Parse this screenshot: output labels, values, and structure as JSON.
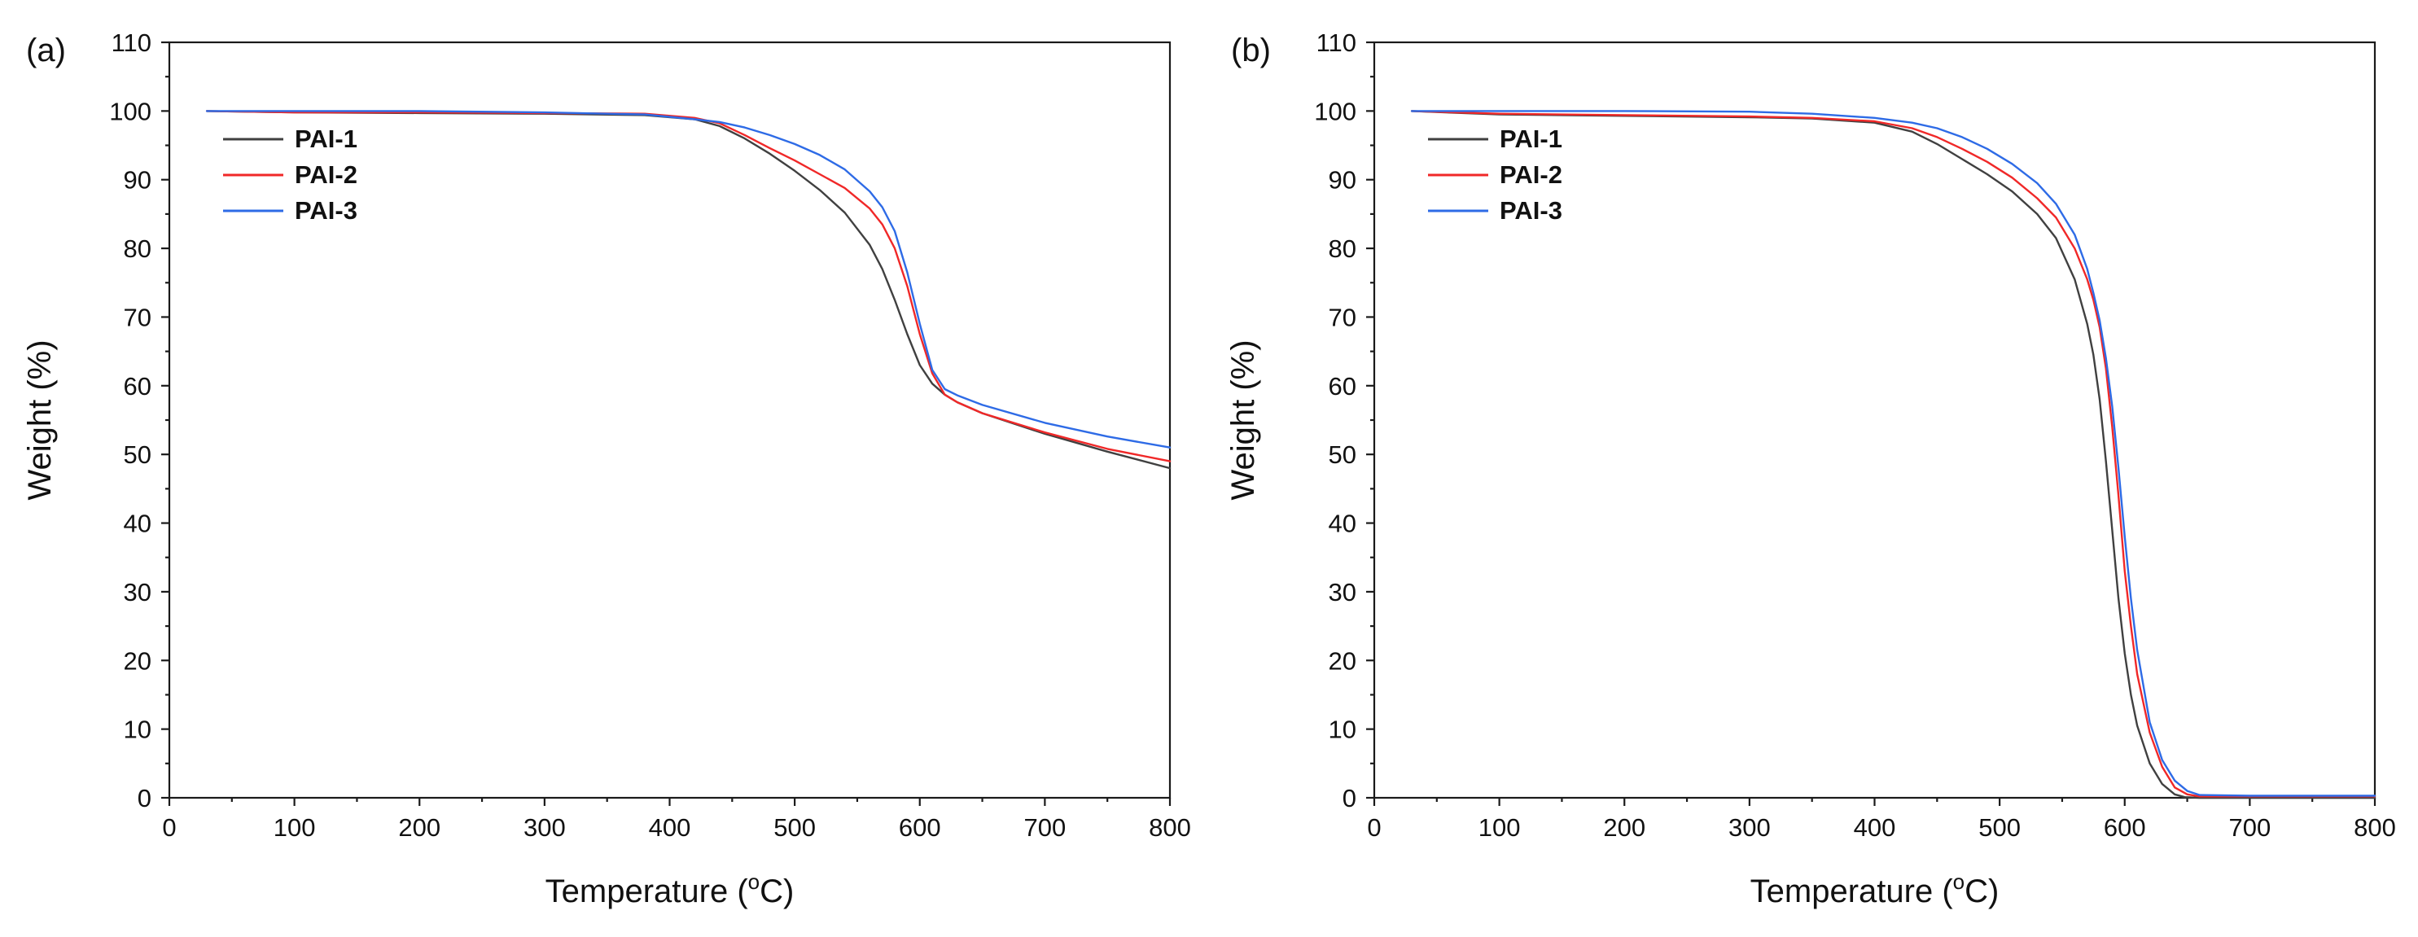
{
  "chart_data": [
    {
      "type": "line",
      "panel_label": "(a)",
      "xlabel": "Temperature (",
      "xlabel_sup": "o",
      "xlabel_suffix": "C)",
      "ylabel": "Weight (%)",
      "xlim": [
        0,
        800
      ],
      "ylim": [
        0,
        110
      ],
      "xticks": [
        0,
        100,
        200,
        300,
        400,
        500,
        600,
        700,
        800
      ],
      "yticks": [
        0,
        10,
        20,
        30,
        40,
        50,
        60,
        70,
        80,
        90,
        100,
        110
      ],
      "grid": false,
      "legend_position": "upper-left",
      "series": [
        {
          "name": "PAI-1",
          "color": "#404040",
          "x": [
            30,
            100,
            200,
            300,
            380,
            420,
            440,
            460,
            480,
            500,
            520,
            540,
            560,
            570,
            580,
            590,
            600,
            610,
            620,
            630,
            650,
            700,
            750,
            800
          ],
          "y": [
            100,
            99.8,
            99.7,
            99.6,
            99.4,
            98.8,
            97.8,
            96,
            93.8,
            91.3,
            88.5,
            85.2,
            80.5,
            77,
            72.5,
            67.5,
            63,
            60.3,
            58.7,
            57.6,
            56,
            53,
            50.4,
            48
          ]
        },
        {
          "name": "PAI-2",
          "color": "#f02828",
          "x": [
            30,
            100,
            200,
            300,
            380,
            420,
            440,
            460,
            480,
            500,
            520,
            540,
            560,
            570,
            580,
            590,
            600,
            610,
            620,
            630,
            650,
            700,
            750,
            800
          ],
          "y": [
            100,
            99.8,
            99.8,
            99.7,
            99.6,
            99,
            98.2,
            96.5,
            94.6,
            92.8,
            90.8,
            88.8,
            85.8,
            83.5,
            80,
            74.5,
            67.5,
            61.8,
            58.7,
            57.6,
            56,
            53.2,
            50.8,
            49
          ]
        },
        {
          "name": "PAI-3",
          "color": "#2e6be6",
          "x": [
            30,
            100,
            200,
            300,
            380,
            420,
            440,
            460,
            480,
            500,
            520,
            540,
            560,
            570,
            580,
            590,
            600,
            610,
            620,
            630,
            650,
            700,
            750,
            800
          ],
          "y": [
            100,
            100,
            100,
            99.8,
            99.5,
            98.8,
            98.4,
            97.6,
            96.5,
            95.2,
            93.6,
            91.5,
            88.3,
            86,
            82.5,
            76.5,
            69,
            62.3,
            59.5,
            58.6,
            57.2,
            54.6,
            52.6,
            51
          ]
        }
      ]
    },
    {
      "type": "line",
      "panel_label": "(b)",
      "xlabel": "Temperature (",
      "xlabel_sup": "o",
      "xlabel_suffix": "C)",
      "ylabel": "Weight (%)",
      "xlim": [
        0,
        800
      ],
      "ylim": [
        0,
        110
      ],
      "xticks": [
        0,
        100,
        200,
        300,
        400,
        500,
        600,
        700,
        800
      ],
      "yticks": [
        0,
        10,
        20,
        30,
        40,
        50,
        60,
        70,
        80,
        90,
        100,
        110
      ],
      "grid": false,
      "legend_position": "upper-left",
      "series": [
        {
          "name": "PAI-1",
          "color": "#404040",
          "x": [
            30,
            100,
            200,
            300,
            350,
            400,
            430,
            450,
            470,
            490,
            510,
            530,
            545,
            560,
            570,
            575,
            580,
            585,
            590,
            595,
            600,
            605,
            610,
            620,
            630,
            640,
            648,
            660,
            700,
            800
          ],
          "y": [
            100,
            99.5,
            99.3,
            99.1,
            98.9,
            98.3,
            97,
            95.2,
            93,
            90.8,
            88.3,
            85,
            81.5,
            75.5,
            69,
            64.5,
            58,
            49,
            39,
            29,
            21,
            15,
            10.5,
            5,
            2,
            0.5,
            0.1,
            0,
            0,
            0
          ]
        },
        {
          "name": "PAI-2",
          "color": "#f02828",
          "x": [
            30,
            100,
            200,
            300,
            350,
            400,
            430,
            450,
            470,
            490,
            510,
            530,
            545,
            560,
            570,
            575,
            580,
            585,
            590,
            595,
            600,
            605,
            610,
            620,
            630,
            640,
            650,
            660,
            700,
            800
          ],
          "y": [
            100,
            99.6,
            99.4,
            99.2,
            99,
            98.5,
            97.5,
            96.2,
            94.5,
            92.6,
            90.3,
            87.3,
            84.5,
            80,
            75.5,
            72.5,
            68.5,
            62.5,
            54,
            44,
            33,
            25,
            18,
            9.5,
            4.5,
            1.5,
            0.5,
            0.2,
            0.2,
            0.2
          ]
        },
        {
          "name": "PAI-3",
          "color": "#2e6be6",
          "x": [
            30,
            100,
            200,
            300,
            350,
            400,
            430,
            450,
            470,
            490,
            510,
            530,
            545,
            560,
            570,
            575,
            580,
            585,
            590,
            595,
            600,
            605,
            610,
            620,
            630,
            640,
            650,
            660,
            700,
            800
          ],
          "y": [
            100,
            100,
            100,
            99.9,
            99.6,
            99,
            98.3,
            97.5,
            96.2,
            94.5,
            92.3,
            89.5,
            86.5,
            82,
            77,
            73.5,
            69.5,
            64,
            57,
            48,
            38,
            29,
            21.5,
            11,
            5.5,
            2.5,
            1,
            0.4,
            0.3,
            0.3
          ]
        }
      ]
    }
  ]
}
